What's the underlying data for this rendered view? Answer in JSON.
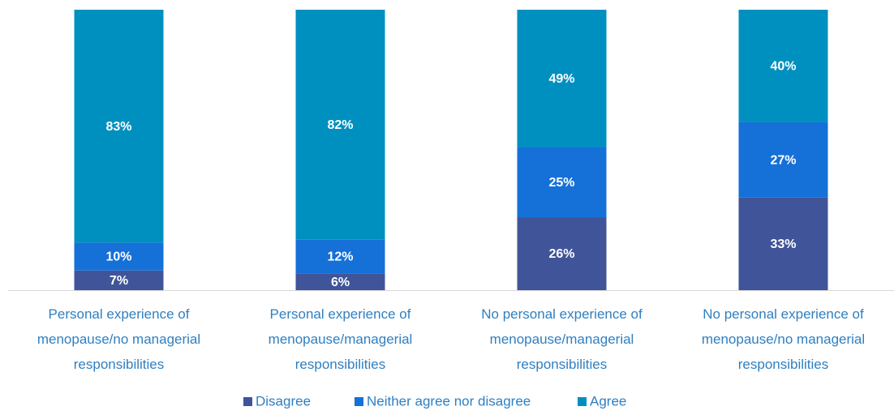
{
  "chart_data": {
    "type": "stacked_bar",
    "categories": [
      "Personal experience of menopause/no managerial responsibilities",
      "Personal experience of menopause/managerial responsibilities",
      "No personal experience of menopause/managerial responsibilities",
      "No personal experience of menopause/no managerial responsibilities"
    ],
    "series": [
      {
        "name": "Disagree",
        "color": "#3f5499",
        "values": [
          7,
          6,
          26,
          33
        ],
        "value_labels": [
          "7%",
          "6%",
          "26%",
          "33%"
        ]
      },
      {
        "name": "Neither agree nor disagree",
        "color": "#1570d8",
        "values": [
          10,
          12,
          25,
          27
        ],
        "value_labels": [
          "10%",
          "12%",
          "25%",
          "27%"
        ]
      },
      {
        "name": "Agree",
        "color": "#0090bf",
        "values": [
          83,
          82,
          49,
          40
        ],
        "value_labels": [
          "83%",
          "82%",
          "49%",
          "40%"
        ]
      }
    ],
    "ylim": [
      0,
      100
    ],
    "legend": "bottom"
  }
}
